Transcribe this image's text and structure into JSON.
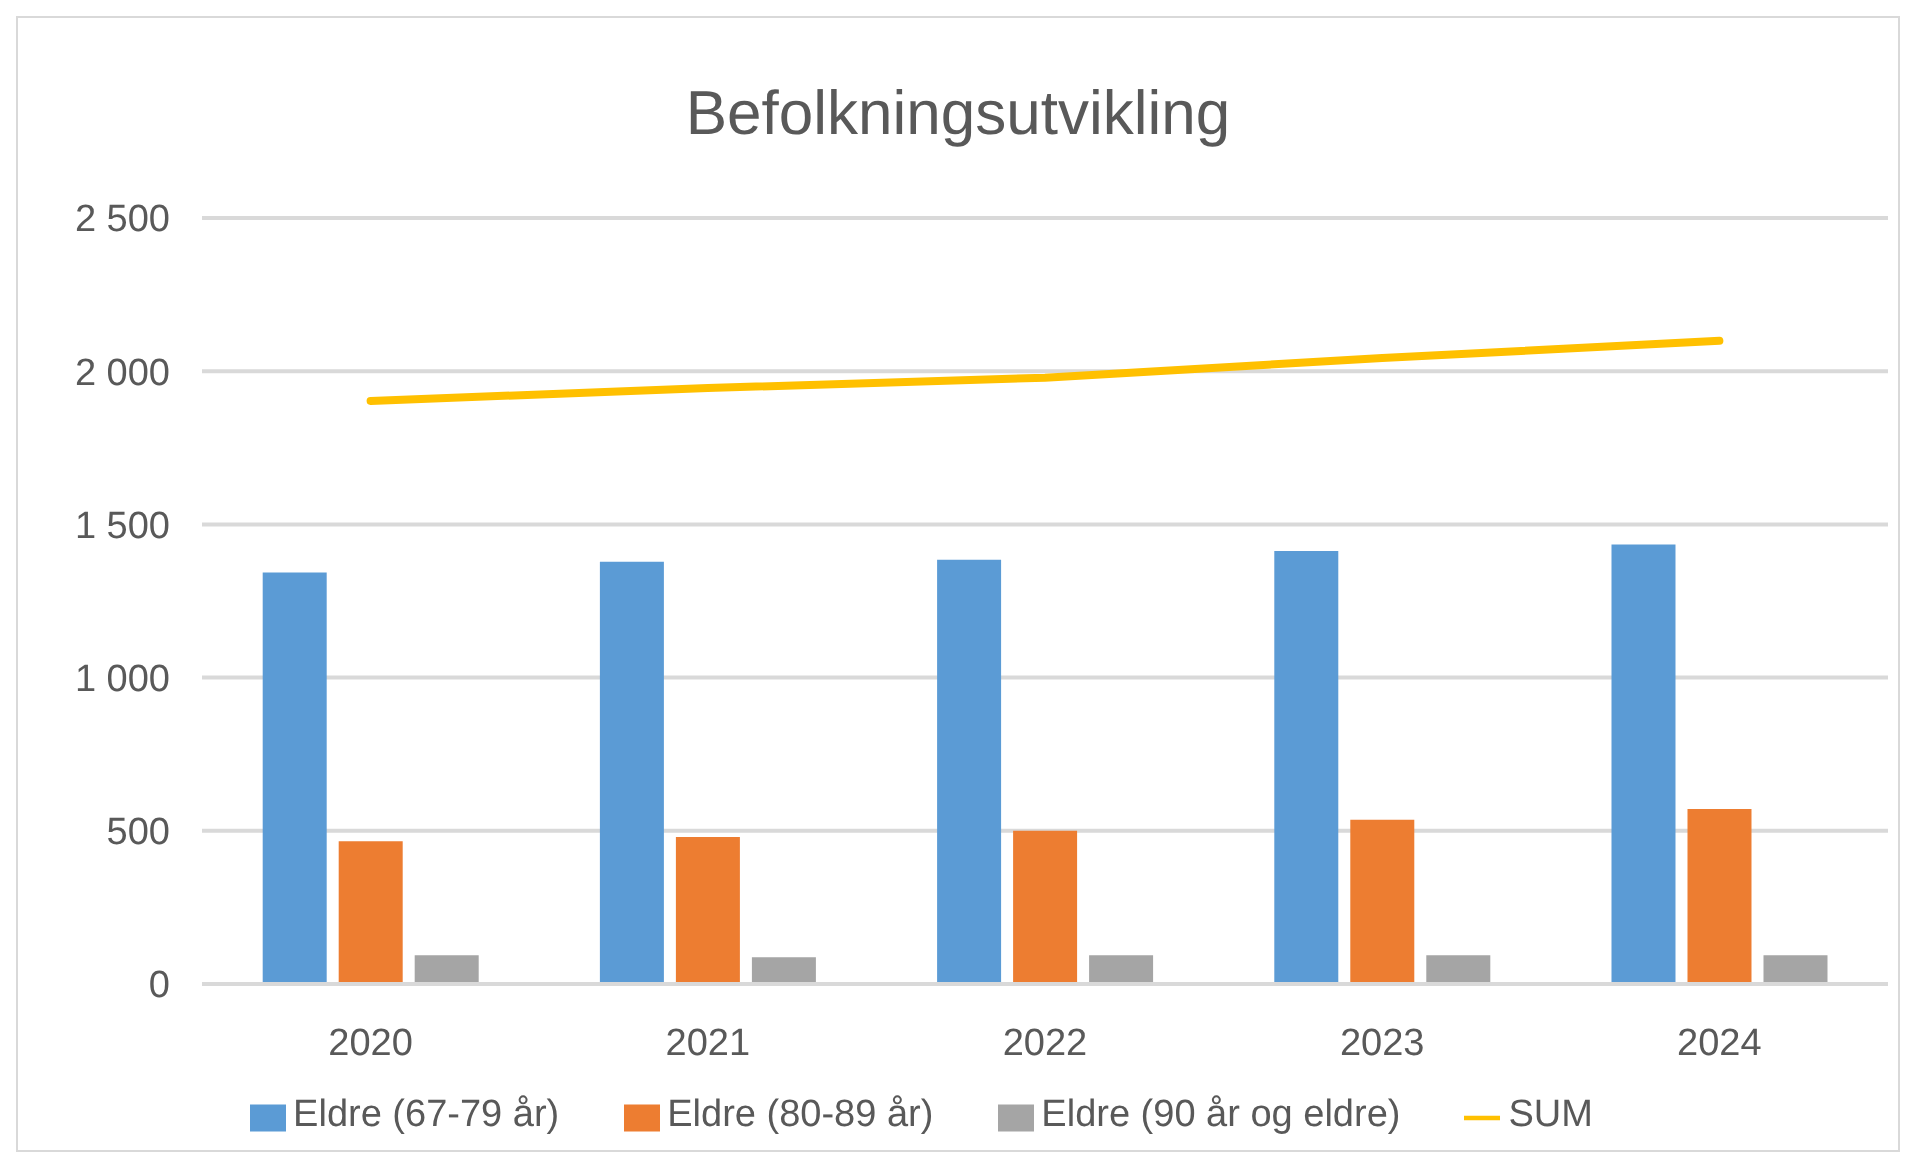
{
  "chart_data": {
    "type": "bar",
    "title": "Befolkningsutvikling",
    "categories": [
      "2020",
      "2021",
      "2022",
      "2023",
      "2024"
    ],
    "series": [
      {
        "name": "Eldre (67-79 år)",
        "color": "#5b9bd5",
        "values": [
          1343,
          1378,
          1385,
          1413,
          1434
        ]
      },
      {
        "name": "Eldre (80-89 år)",
        "color": "#ed7d31",
        "values": [
          466,
          480,
          500,
          536,
          571
        ]
      },
      {
        "name": "Eldre (90 år og eldre)",
        "color": "#a5a5a5",
        "values": [
          94,
          87,
          94,
          94,
          94
        ]
      },
      {
        "name": "SUM",
        "type": "line",
        "color": "#ffc000",
        "values": [
          1903,
          1945,
          1979,
          2043,
          2099
        ]
      }
    ],
    "ylim": [
      0,
      2500
    ],
    "yticks": [
      {
        "value": 0,
        "label": "0"
      },
      {
        "value": 500,
        "label": "500"
      },
      {
        "value": 1000,
        "label": "1 000"
      },
      {
        "value": 1500,
        "label": "1 500"
      },
      {
        "value": 2000,
        "label": "2 000"
      },
      {
        "value": 2500,
        "label": "2 500"
      }
    ],
    "grid": "y",
    "legend": "bottom",
    "marker": "none",
    "line_style": "solid"
  }
}
